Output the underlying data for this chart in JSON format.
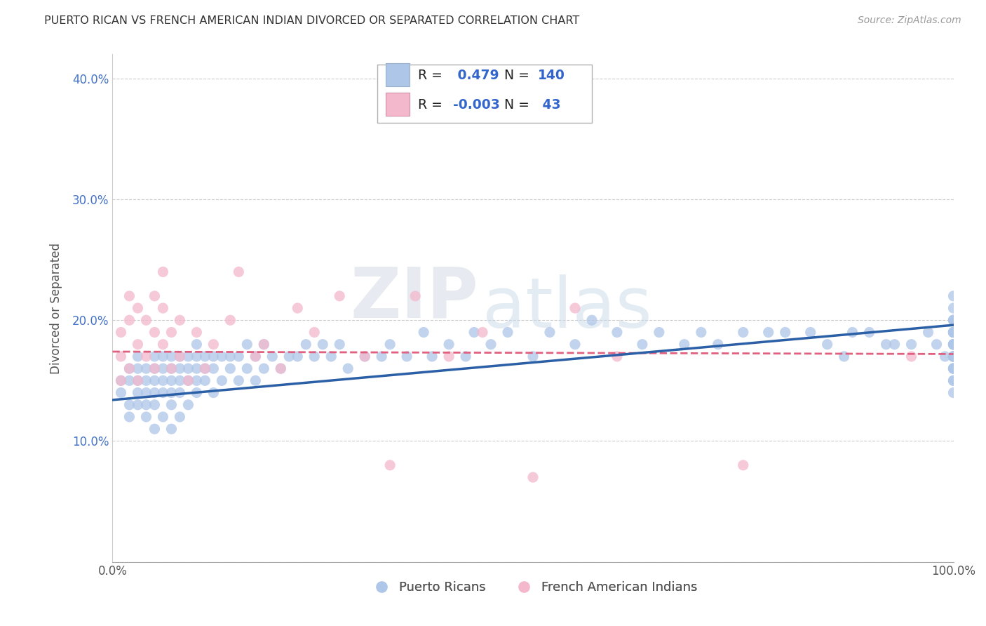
{
  "title": "PUERTO RICAN VS FRENCH AMERICAN INDIAN DIVORCED OR SEPARATED CORRELATION CHART",
  "source": "Source: ZipAtlas.com",
  "ylabel": "Divorced or Separated",
  "blue_R": "0.479",
  "blue_N": "140",
  "pink_R": "-0.003",
  "pink_N": "43",
  "blue_color": "#aec6e8",
  "pink_color": "#f4b8cc",
  "blue_line_color": "#2b5fa6",
  "pink_line_color": "#e06080",
  "legend_label_blue": "Puerto Ricans",
  "legend_label_pink": "French American Indians",
  "watermark_zip": "ZIP",
  "watermark_atlas": "atlas",
  "xlim": [
    0.0,
    1.0
  ],
  "ylim": [
    0.0,
    0.42
  ],
  "blue_x": [
    0.01,
    0.01,
    0.02,
    0.02,
    0.02,
    0.02,
    0.03,
    0.03,
    0.03,
    0.03,
    0.03,
    0.04,
    0.04,
    0.04,
    0.04,
    0.04,
    0.05,
    0.05,
    0.05,
    0.05,
    0.05,
    0.05,
    0.06,
    0.06,
    0.06,
    0.06,
    0.06,
    0.07,
    0.07,
    0.07,
    0.07,
    0.07,
    0.07,
    0.08,
    0.08,
    0.08,
    0.08,
    0.08,
    0.09,
    0.09,
    0.09,
    0.09,
    0.1,
    0.1,
    0.1,
    0.1,
    0.1,
    0.11,
    0.11,
    0.11,
    0.12,
    0.12,
    0.12,
    0.13,
    0.13,
    0.14,
    0.14,
    0.15,
    0.15,
    0.16,
    0.16,
    0.17,
    0.17,
    0.18,
    0.18,
    0.19,
    0.2,
    0.21,
    0.22,
    0.23,
    0.24,
    0.25,
    0.26,
    0.27,
    0.28,
    0.3,
    0.32,
    0.33,
    0.35,
    0.37,
    0.38,
    0.4,
    0.42,
    0.43,
    0.45,
    0.47,
    0.5,
    0.52,
    0.55,
    0.57,
    0.6,
    0.63,
    0.65,
    0.68,
    0.7,
    0.72,
    0.75,
    0.78,
    0.8,
    0.83,
    0.85,
    0.87,
    0.88,
    0.9,
    0.92,
    0.93,
    0.95,
    0.97,
    0.98,
    0.99,
    1.0,
    1.0,
    1.0,
    1.0,
    1.0,
    1.0,
    1.0,
    1.0,
    1.0,
    1.0,
    1.0,
    1.0,
    1.0,
    1.0,
    1.0,
    1.0,
    1.0,
    1.0,
    1.0,
    1.0,
    1.0,
    1.0,
    1.0,
    1.0,
    1.0,
    1.0,
    1.0,
    1.0,
    1.0,
    1.0
  ],
  "blue_y": [
    0.14,
    0.15,
    0.12,
    0.13,
    0.15,
    0.16,
    0.13,
    0.14,
    0.15,
    0.16,
    0.17,
    0.12,
    0.13,
    0.14,
    0.15,
    0.16,
    0.11,
    0.13,
    0.14,
    0.15,
    0.16,
    0.17,
    0.12,
    0.14,
    0.15,
    0.16,
    0.17,
    0.11,
    0.13,
    0.14,
    0.15,
    0.16,
    0.17,
    0.12,
    0.14,
    0.15,
    0.16,
    0.17,
    0.13,
    0.15,
    0.16,
    0.17,
    0.14,
    0.15,
    0.16,
    0.17,
    0.18,
    0.15,
    0.16,
    0.17,
    0.14,
    0.16,
    0.17,
    0.15,
    0.17,
    0.16,
    0.17,
    0.15,
    0.17,
    0.16,
    0.18,
    0.15,
    0.17,
    0.16,
    0.18,
    0.17,
    0.16,
    0.17,
    0.17,
    0.18,
    0.17,
    0.18,
    0.17,
    0.18,
    0.16,
    0.17,
    0.17,
    0.18,
    0.17,
    0.19,
    0.17,
    0.18,
    0.17,
    0.19,
    0.18,
    0.19,
    0.17,
    0.19,
    0.18,
    0.2,
    0.19,
    0.18,
    0.19,
    0.18,
    0.19,
    0.18,
    0.19,
    0.19,
    0.19,
    0.19,
    0.18,
    0.17,
    0.19,
    0.19,
    0.18,
    0.18,
    0.18,
    0.19,
    0.18,
    0.17,
    0.14,
    0.15,
    0.16,
    0.17,
    0.18,
    0.19,
    0.2,
    0.21,
    0.22,
    0.19,
    0.18,
    0.17,
    0.19,
    0.18,
    0.2,
    0.17,
    0.19,
    0.2,
    0.16,
    0.18,
    0.19,
    0.17,
    0.18,
    0.16,
    0.15,
    0.17,
    0.19,
    0.18,
    0.17,
    0.16
  ],
  "pink_x": [
    0.01,
    0.01,
    0.01,
    0.02,
    0.02,
    0.02,
    0.03,
    0.03,
    0.03,
    0.04,
    0.04,
    0.05,
    0.05,
    0.05,
    0.06,
    0.06,
    0.06,
    0.07,
    0.07,
    0.08,
    0.08,
    0.09,
    0.1,
    0.11,
    0.12,
    0.14,
    0.15,
    0.17,
    0.18,
    0.2,
    0.22,
    0.24,
    0.27,
    0.3,
    0.33,
    0.36,
    0.4,
    0.44,
    0.5,
    0.55,
    0.6,
    0.75,
    0.95
  ],
  "pink_y": [
    0.15,
    0.17,
    0.19,
    0.16,
    0.2,
    0.22,
    0.15,
    0.18,
    0.21,
    0.17,
    0.2,
    0.16,
    0.19,
    0.22,
    0.18,
    0.21,
    0.24,
    0.16,
    0.19,
    0.17,
    0.2,
    0.15,
    0.19,
    0.16,
    0.18,
    0.2,
    0.24,
    0.17,
    0.18,
    0.16,
    0.21,
    0.19,
    0.22,
    0.17,
    0.08,
    0.22,
    0.17,
    0.19,
    0.07,
    0.21,
    0.17,
    0.08,
    0.17
  ],
  "blue_line_x0": 0.0,
  "blue_line_x1": 1.0,
  "blue_line_y0": 0.134,
  "blue_line_y1": 0.196,
  "pink_line_x0": 0.0,
  "pink_line_x1": 1.0,
  "pink_line_y0": 0.174,
  "pink_line_y1": 0.172
}
